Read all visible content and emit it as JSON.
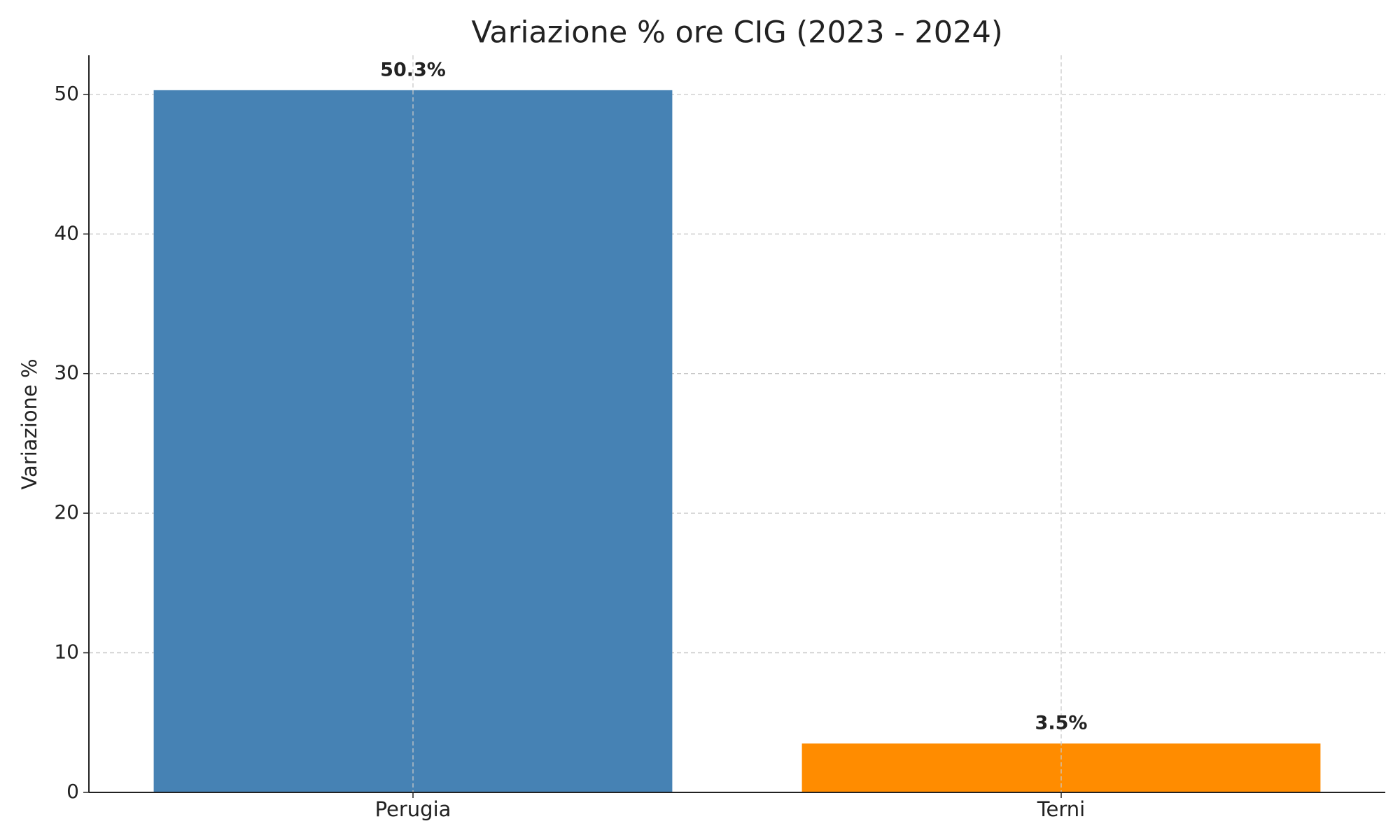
{
  "chart_data": {
    "type": "bar",
    "title": "Variazione % ore CIG (2023 - 2024)",
    "y_label": "Variazione %",
    "categories": [
      "Perugia",
      "Terni"
    ],
    "values": [
      50.3,
      3.5
    ],
    "value_labels": [
      "50.3%",
      "3.5%"
    ],
    "colors": [
      "#4682b4",
      "#ff8c00"
    ],
    "ylim": [
      0,
      52.8
    ],
    "yticks": [
      0,
      10,
      20,
      30,
      40,
      50
    ],
    "grid": true
  }
}
